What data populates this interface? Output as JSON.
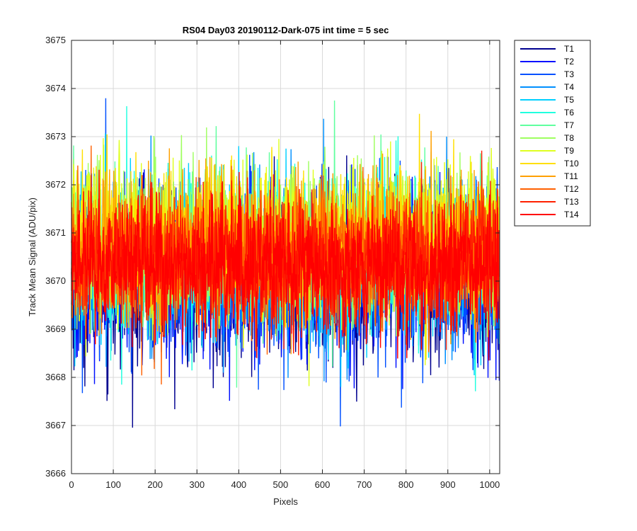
{
  "chart_data": {
    "type": "line",
    "title": "RS04 Day03 20190112-Dark-075 int time = 5 sec",
    "xlabel": "Pixels",
    "ylabel": "Track Mean Signal (ADU/pix)",
    "xlim": [
      0,
      1024
    ],
    "ylim": [
      3666,
      3675
    ],
    "xticks": [
      0,
      100,
      200,
      300,
      400,
      500,
      600,
      700,
      800,
      900,
      1000
    ],
    "yticks": [
      3666,
      3667,
      3668,
      3669,
      3670,
      3671,
      3672,
      3673,
      3674,
      3675
    ],
    "grid": true,
    "legend_position": "outside-top-right",
    "n_pixels": 1024,
    "series": [
      {
        "name": "T1",
        "color": "#00008f",
        "mean": 3670.0,
        "spread": 1.45
      },
      {
        "name": "T2",
        "color": "#0010ff",
        "mean": 3670.1,
        "spread": 1.4
      },
      {
        "name": "T3",
        "color": "#0050ff",
        "mean": 3670.2,
        "spread": 1.35
      },
      {
        "name": "T4",
        "color": "#0090ff",
        "mean": 3670.3,
        "spread": 1.35
      },
      {
        "name": "T5",
        "color": "#00d0ff",
        "mean": 3670.4,
        "spread": 1.3
      },
      {
        "name": "T6",
        "color": "#20ffdf",
        "mean": 3670.6,
        "spread": 1.3
      },
      {
        "name": "T7",
        "color": "#60ff9f",
        "mean": 3670.7,
        "spread": 1.25
      },
      {
        "name": "T8",
        "color": "#9fff60",
        "mean": 3670.8,
        "spread": 1.25
      },
      {
        "name": "T9",
        "color": "#dfff20",
        "mean": 3670.9,
        "spread": 1.25
      },
      {
        "name": "T10",
        "color": "#ffdf00",
        "mean": 3670.8,
        "spread": 1.2
      },
      {
        "name": "T11",
        "color": "#ffa000",
        "mean": 3670.7,
        "spread": 1.2
      },
      {
        "name": "T12",
        "color": "#ff6000",
        "mean": 3670.5,
        "spread": 1.15
      },
      {
        "name": "T13",
        "color": "#ff2000",
        "mean": 3670.4,
        "spread": 1.15
      },
      {
        "name": "T14",
        "color": "#ff0000",
        "mean": 3670.3,
        "spread": 1.1
      }
    ]
  }
}
